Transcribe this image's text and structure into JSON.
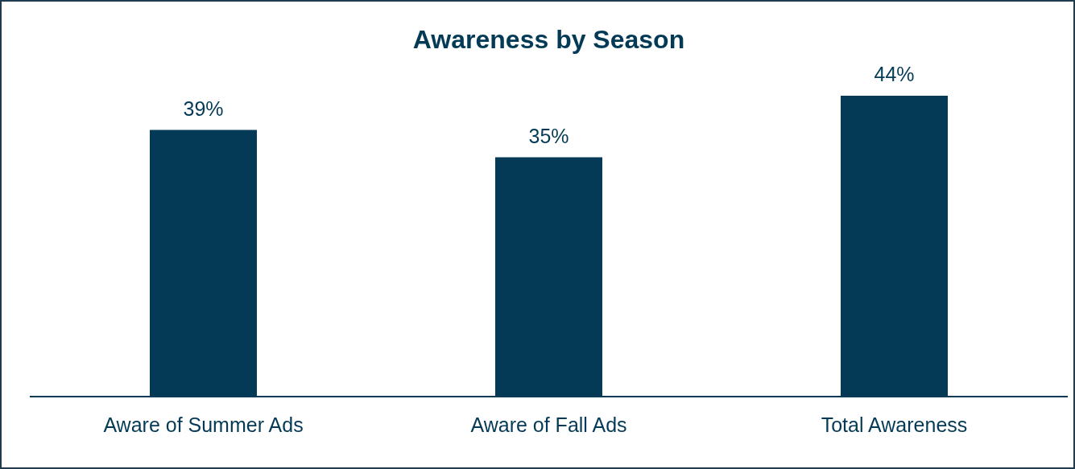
{
  "chart_data": {
    "type": "bar",
    "title": "Awareness by Season",
    "categories": [
      "Aware of Summer Ads",
      "Aware of Fall Ads",
      "Total Awareness"
    ],
    "values": [
      39,
      35,
      44
    ],
    "value_labels": [
      "39%",
      "35%",
      "44%"
    ],
    "color": "#043a55",
    "grid": false,
    "legend": false
  }
}
